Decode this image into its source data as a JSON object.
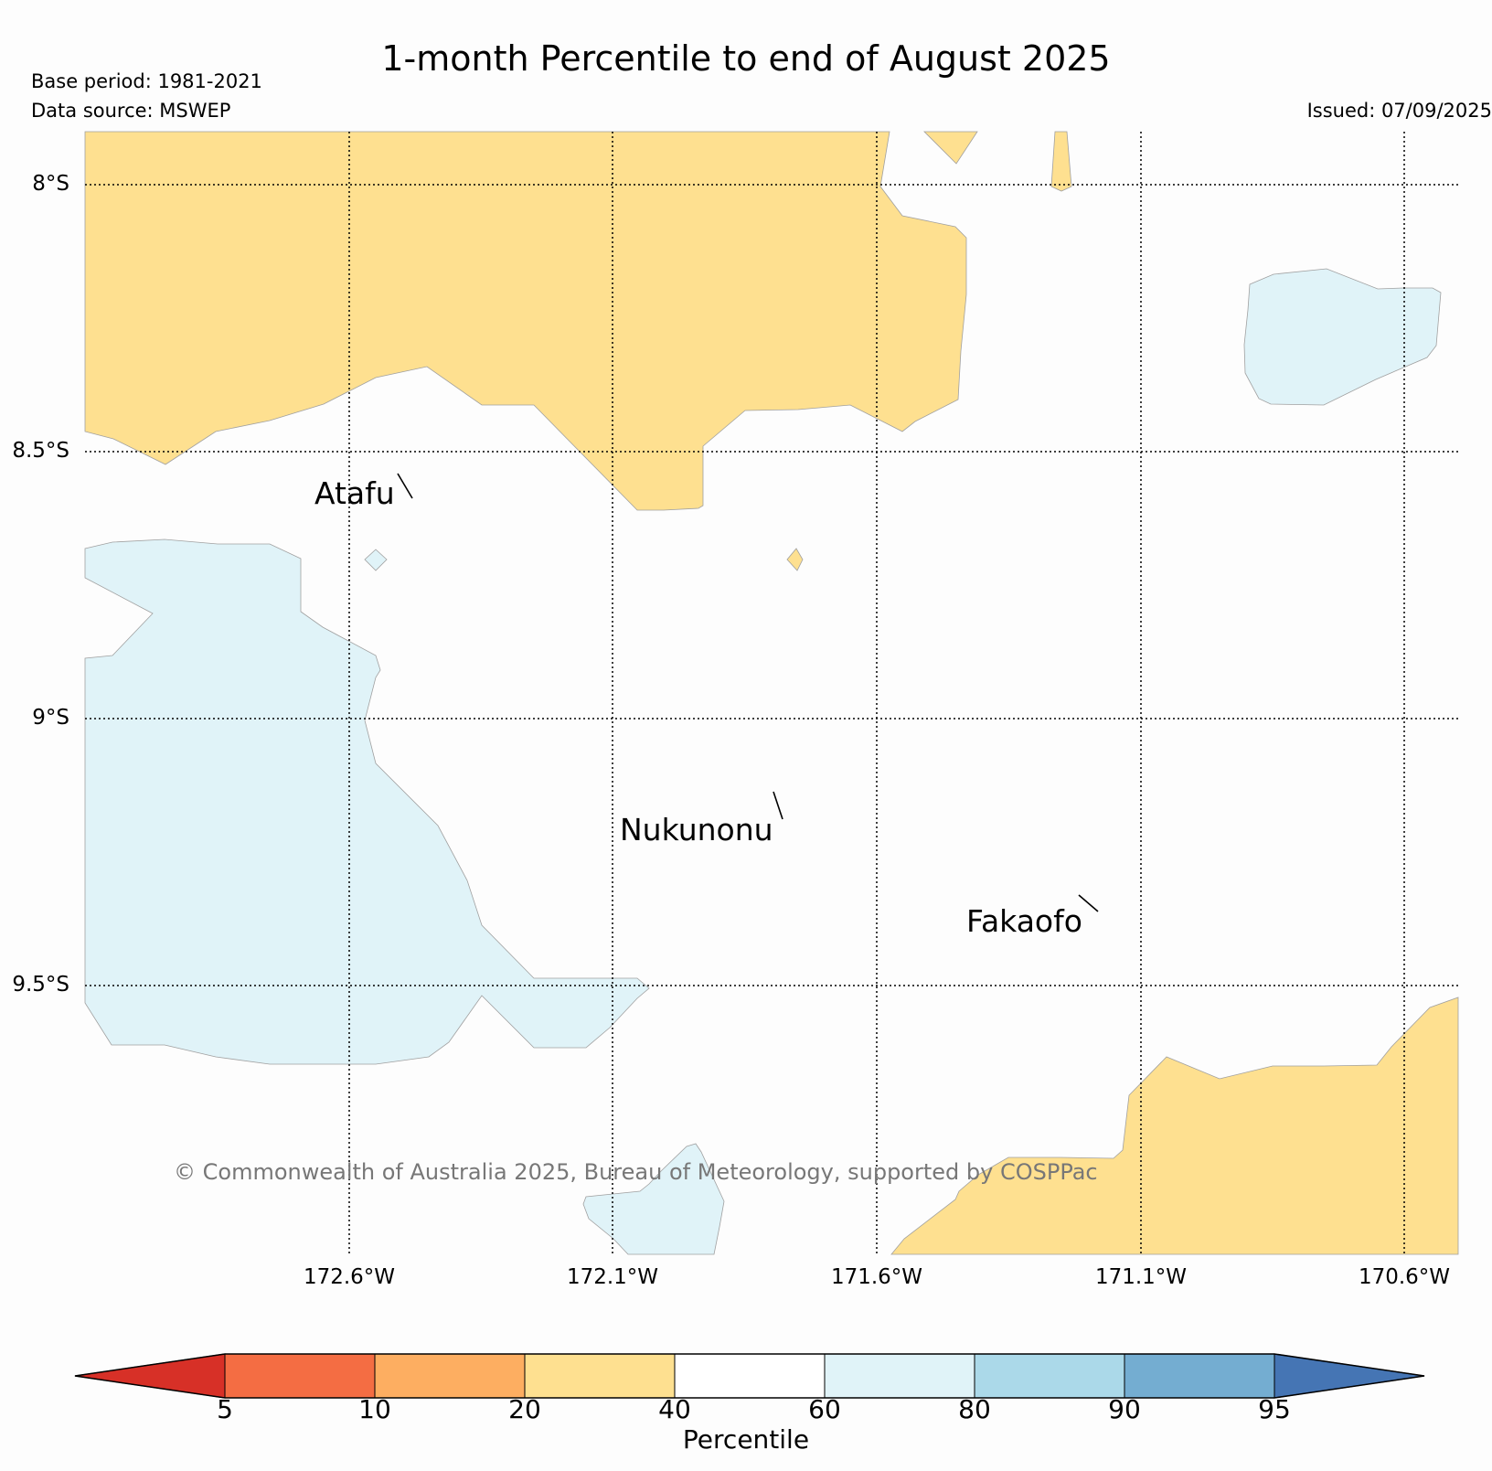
{
  "title": "1-month Percentile to end of August 2025",
  "base_period": "Base period: 1981-2021",
  "data_source": "Data source: MSWEP",
  "issued": "Issued: 07/09/2025",
  "map": {
    "latitude_labels": [
      "8°S",
      "8.5°S",
      "9°S",
      "9.5°S"
    ],
    "longitude_labels": [
      "172.6°W",
      "172.1°W",
      "171.6°W",
      "171.1°W",
      "170.6°W"
    ],
    "places": [
      "Atafu",
      "Nukunonu",
      "Fakaofo"
    ],
    "copyright": "© Commonwealth of Australia 2025, Bureau of Meteorology, supported by COSPPac",
    "colors": {
      "below": "#fee090",
      "above": "#e0f3f8",
      "neutral": "#fdfdfd"
    }
  },
  "colorbar": {
    "label": "Percentile",
    "ticks": [
      "5",
      "10",
      "20",
      "40",
      "60",
      "80",
      "90",
      "95"
    ],
    "colors": [
      "#d73027",
      "#f46d43",
      "#fdae61",
      "#fee090",
      "#ffffff",
      "#e0f3f8",
      "#abd9e9",
      "#74add1",
      "#4575b4"
    ]
  }
}
